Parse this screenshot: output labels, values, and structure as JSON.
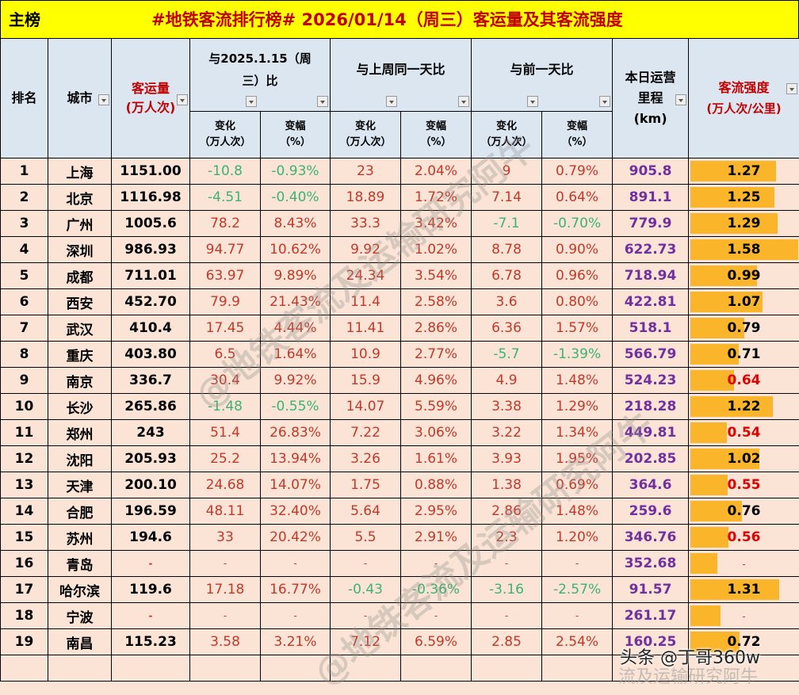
{
  "title": {
    "left": "主榜",
    "main": "#地铁客流排行榜# 2026/01/14（周三）客运量及其客流强度"
  },
  "headers": {
    "rank": "排名",
    "city": "城市",
    "volume_line1": "客运量",
    "volume_line2": "(万人次)",
    "vs_last_year_line1": "与2025.1.15（周",
    "vs_last_year_line2": "三）比",
    "vs_last_week": "与上周同一天比",
    "vs_prev_day": "与前一天比",
    "mileage_line1": "本日运营",
    "mileage_line2": "里程",
    "mileage_line3": "(km)",
    "intensity_line1": "客流强度",
    "intensity_line2": "(万人次/公里)",
    "change_line1": "变化",
    "change_line2": "（万人次）",
    "pct_line1": "变幅",
    "pct_line2": "（%）"
  },
  "rows": [
    {
      "rank": "1",
      "city": "上海",
      "volume": "1151.00",
      "y_chg": "-10.8",
      "y_pct": "-0.93%",
      "w_chg": "23",
      "w_pct": "2.04%",
      "d_chg": "9",
      "d_pct": "0.79%",
      "km": "905.8",
      "intensity": "1.27",
      "bar": 108
    },
    {
      "rank": "2",
      "city": "北京",
      "volume": "1116.98",
      "y_chg": "-4.51",
      "y_pct": "-0.40%",
      "w_chg": "18.89",
      "w_pct": "1.72%",
      "d_chg": "7.14",
      "d_pct": "0.64%",
      "km": "891.1",
      "intensity": "1.25",
      "bar": 106
    },
    {
      "rank": "3",
      "city": "广州",
      "volume": "1005.6",
      "y_chg": "78.2",
      "y_pct": "8.43%",
      "w_chg": "33.3",
      "w_pct": "3.42%",
      "d_chg": "-7.1",
      "d_pct": "-0.70%",
      "km": "779.9",
      "intensity": "1.29",
      "bar": 110
    },
    {
      "rank": "4",
      "city": "深圳",
      "volume": "986.93",
      "y_chg": "94.77",
      "y_pct": "10.62%",
      "w_chg": "9.92",
      "w_pct": "1.02%",
      "d_chg": "8.78",
      "d_pct": "0.90%",
      "km": "622.73",
      "intensity": "1.58",
      "bar": 136
    },
    {
      "rank": "5",
      "city": "成都",
      "volume": "711.01",
      "y_chg": "63.97",
      "y_pct": "9.89%",
      "w_chg": "24.34",
      "w_pct": "3.54%",
      "d_chg": "6.78",
      "d_pct": "0.96%",
      "km": "718.94",
      "intensity": "0.99",
      "bar": 84
    },
    {
      "rank": "6",
      "city": "西安",
      "volume": "452.70",
      "y_chg": "79.9",
      "y_pct": "21.43%",
      "w_chg": "11.4",
      "w_pct": "2.58%",
      "d_chg": "3.6",
      "d_pct": "0.80%",
      "km": "422.81",
      "intensity": "1.07",
      "bar": 91
    },
    {
      "rank": "7",
      "city": "武汉",
      "volume": "410.4",
      "y_chg": "17.45",
      "y_pct": "4.44%",
      "w_chg": "11.41",
      "w_pct": "2.86%",
      "d_chg": "6.36",
      "d_pct": "1.57%",
      "km": "518.1",
      "intensity": "0.79",
      "bar": 68
    },
    {
      "rank": "8",
      "city": "重庆",
      "volume": "403.80",
      "y_chg": "6.5",
      "y_pct": "1.64%",
      "w_chg": "10.9",
      "w_pct": "2.77%",
      "d_chg": "-5.7",
      "d_pct": "-1.39%",
      "km": "566.79",
      "intensity": "0.71",
      "bar": 61
    },
    {
      "rank": "9",
      "city": "南京",
      "volume": "336.7",
      "y_chg": "30.4",
      "y_pct": "9.92%",
      "w_chg": "15.9",
      "w_pct": "4.96%",
      "d_chg": "4.9",
      "d_pct": "1.48%",
      "km": "524.23",
      "intensity": "0.64",
      "bar": 55
    },
    {
      "rank": "10",
      "city": "长沙",
      "volume": "265.86",
      "y_chg": "-1.48",
      "y_pct": "-0.55%",
      "w_chg": "14.07",
      "w_pct": "5.59%",
      "d_chg": "3.38",
      "d_pct": "1.29%",
      "km": "218.28",
      "intensity": "1.22",
      "bar": 104
    },
    {
      "rank": "11",
      "city": "郑州",
      "volume": "243",
      "y_chg": "51.4",
      "y_pct": "26.83%",
      "w_chg": "7.22",
      "w_pct": "3.06%",
      "d_chg": "3.22",
      "d_pct": "1.34%",
      "km": "449.81",
      "intensity": "0.54",
      "bar": 46
    },
    {
      "rank": "12",
      "city": "沈阳",
      "volume": "205.93",
      "y_chg": "25.2",
      "y_pct": "13.94%",
      "w_chg": "3.26",
      "w_pct": "1.61%",
      "d_chg": "3.93",
      "d_pct": "1.95%",
      "km": "202.85",
      "intensity": "1.02",
      "bar": 87
    },
    {
      "rank": "13",
      "city": "天津",
      "volume": "200.10",
      "y_chg": "24.68",
      "y_pct": "14.07%",
      "w_chg": "1.75",
      "w_pct": "0.88%",
      "d_chg": "1.38",
      "d_pct": "0.69%",
      "km": "364.6",
      "intensity": "0.55",
      "bar": 47
    },
    {
      "rank": "14",
      "city": "合肥",
      "volume": "196.59",
      "y_chg": "48.11",
      "y_pct": "32.40%",
      "w_chg": "5.64",
      "w_pct": "2.95%",
      "d_chg": "2.86",
      "d_pct": "1.48%",
      "km": "259.6",
      "intensity": "0.76",
      "bar": 65
    },
    {
      "rank": "15",
      "city": "苏州",
      "volume": "194.6",
      "y_chg": "33",
      "y_pct": "20.42%",
      "w_chg": "5.5",
      "w_pct": "2.91%",
      "d_chg": "2.3",
      "d_pct": "1.20%",
      "km": "346.76",
      "intensity": "0.56",
      "bar": 48
    },
    {
      "rank": "16",
      "city": "青岛",
      "volume": "-",
      "y_chg": "-",
      "y_pct": "-",
      "w_chg": "-",
      "w_pct": "-",
      "d_chg": "-",
      "d_pct": "-",
      "km": "352.68",
      "intensity": "-",
      "bar": 34
    },
    {
      "rank": "17",
      "city": "哈尔滨",
      "volume": "119.6",
      "y_chg": "17.18",
      "y_pct": "16.77%",
      "w_chg": "-0.43",
      "w_pct": "-0.36%",
      "d_chg": "-3.16",
      "d_pct": "-2.57%",
      "km": "91.57",
      "intensity": "1.31",
      "bar": 112
    },
    {
      "rank": "18",
      "city": "宁波",
      "volume": "-",
      "y_chg": "-",
      "y_pct": "-",
      "w_chg": "-",
      "w_pct": "-",
      "d_chg": "-",
      "d_pct": "-",
      "km": "261.17",
      "intensity": "-",
      "bar": 38
    },
    {
      "rank": "19",
      "city": "南昌",
      "volume": "115.23",
      "y_chg": "3.58",
      "y_pct": "3.21%",
      "w_chg": "7.12",
      "w_pct": "6.59%",
      "d_chg": "2.85",
      "d_pct": "2.54%",
      "km": "160.25",
      "intensity": "0.72",
      "bar": 62
    }
  ],
  "watermarks": {
    "diagonal": "@地铁客流及运输研究阿牛",
    "footer_line1": "头条 @丁哥360w",
    "footer_line2": "流及运输研究阿牛"
  },
  "colors": {
    "title_bg": "#ffff00",
    "title_text": "#c00000",
    "header_bg": "#dce6f1",
    "row_bg": "#fbe4d5",
    "positive": "#c0392b",
    "negative": "#3cb371",
    "mileage": "#7030a0",
    "bar": "#fbb52b",
    "low_intensity": "#e00000"
  }
}
